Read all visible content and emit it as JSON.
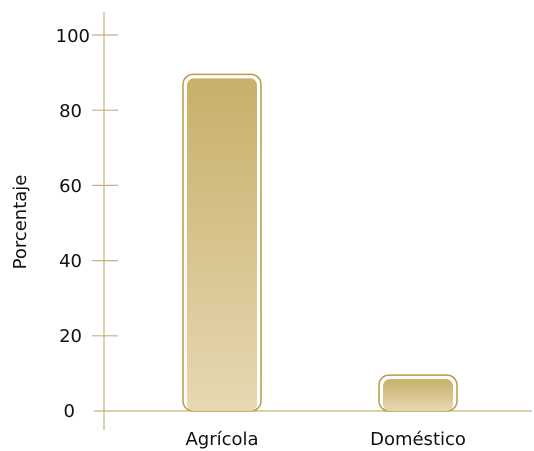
{
  "chart_data": {
    "type": "bar",
    "title": "",
    "xlabel": "",
    "ylabel": "Porcentaje",
    "categories": [
      "Agrícola",
      "Doméstico"
    ],
    "values": [
      89,
      9
    ],
    "ylim": [
      0,
      100
    ],
    "yticks": [
      "0",
      "20",
      "40",
      "60",
      "80",
      "100"
    ],
    "grid": false,
    "colors": {
      "axis": "#c9b27a",
      "bar_top": "#c8b06a",
      "bar_bottom": "#e6d8b2",
      "bar_outline": "#b79b45"
    }
  }
}
